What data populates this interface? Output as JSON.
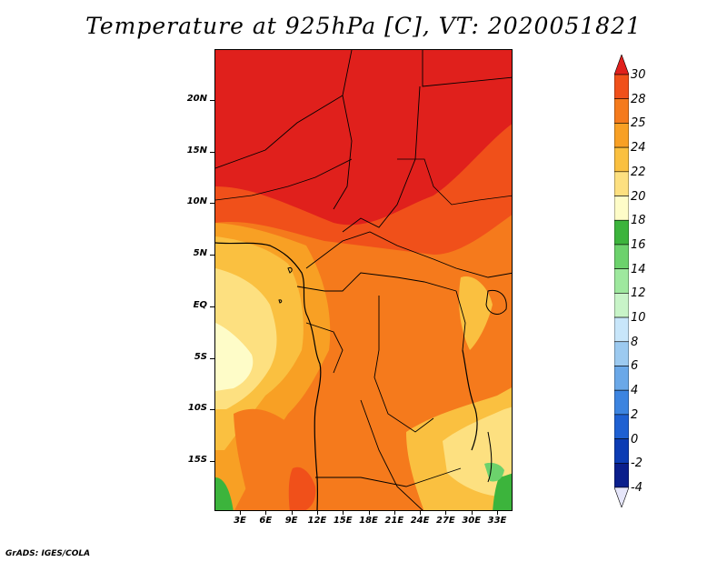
{
  "title": "Temperature at 925hPa [C], VT: 2020051821",
  "footer": "GrADS: IGES/COLA",
  "map": {
    "region": "Central Africa",
    "lat_labels": [
      "20N",
      "15N",
      "10N",
      "5N",
      "EQ",
      "5S",
      "10S",
      "15S"
    ],
    "lon_labels": [
      "3E",
      "6E",
      "9E",
      "12E",
      "15E",
      "18E",
      "21E",
      "24E",
      "27E",
      "30E",
      "33E"
    ]
  },
  "colorbar": {
    "labels": [
      "30",
      "28",
      "25",
      "24",
      "22",
      "20",
      "18",
      "16",
      "14",
      "12",
      "10",
      "8",
      "6",
      "4",
      "2",
      "0",
      "-2",
      "-4"
    ],
    "colors": [
      "#e0201c",
      "#f0501a",
      "#f57a1c",
      "#f8a024",
      "#fac040",
      "#fde080",
      "#fefcc8",
      "#3cb43c",
      "#6cd26c",
      "#9ee89e",
      "#c8f4c8",
      "#c8e6fa",
      "#9ccaf0",
      "#6aa8e8",
      "#3c84e0",
      "#1e60d2",
      "#0c3cb4",
      "#0a1e8c",
      "#000060"
    ]
  },
  "palette": {
    "hot": "#e0201c",
    "warm1": "#f0501a",
    "warm2": "#f57a1c",
    "warm3": "#f8a024",
    "warm4": "#fac040",
    "warm5": "#fde080",
    "pale": "#fefcc8",
    "green": "#3cb43c"
  }
}
